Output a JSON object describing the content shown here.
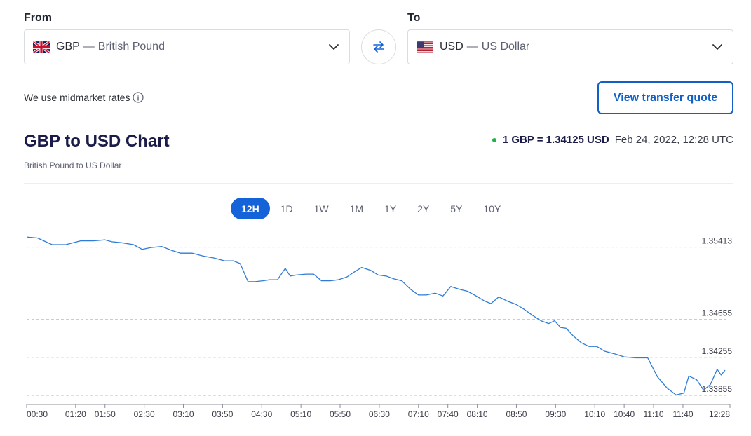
{
  "from": {
    "label": "From",
    "code": "GBP",
    "separator": "—",
    "name": "British Pound",
    "flag": "uk-flag-icon"
  },
  "to": {
    "label": "To",
    "code": "USD",
    "separator": "—",
    "name": "US Dollar",
    "flag": "us-flag-icon"
  },
  "rates_note": "We use midmarket rates",
  "quote_button": "View transfer quote",
  "chart_header": {
    "title": "GBP to USD Chart",
    "subtitle": "British Pound to US Dollar",
    "rate": "1 GBP = 1.34125 USD",
    "timestamp": "Feb 24, 2022, 12:28 UTC"
  },
  "periods": [
    "12H",
    "1D",
    "1W",
    "1M",
    "1Y",
    "2Y",
    "5Y",
    "10Y"
  ],
  "active_period": "12H",
  "colors": {
    "accent": "#1463d8",
    "line": "#2f7bd6",
    "live_dot": "#22b24c",
    "title": "#1b1c4a"
  },
  "chart_data": {
    "type": "line",
    "y_ticks": [
      1.35413,
      1.34655,
      1.34255,
      1.33855
    ],
    "y_tick_labels": [
      "1.35413",
      "1.34655",
      "1.34255",
      "1.33855"
    ],
    "ylim": [
      1.3376,
      1.3558
    ],
    "x_tick_labels": [
      "00:30",
      "01:20",
      "01:50",
      "02:30",
      "03:10",
      "03:50",
      "04:30",
      "05:10",
      "05:50",
      "06:30",
      "07:10",
      "07:40",
      "08:10",
      "08:50",
      "09:30",
      "10:10",
      "10:40",
      "11:10",
      "11:40",
      "12:28"
    ],
    "x_tick_minutes": [
      30,
      80,
      110,
      150,
      190,
      230,
      270,
      310,
      350,
      390,
      430,
      460,
      490,
      530,
      570,
      610,
      640,
      670,
      700,
      748
    ],
    "grid": "dashed horizontal at y ticks",
    "series": [
      {
        "points": [
          [
            30,
            1.3552
          ],
          [
            41,
            1.3551
          ],
          [
            56,
            1.3544
          ],
          [
            70,
            1.3544
          ],
          [
            85,
            1.3548
          ],
          [
            98,
            1.3548
          ],
          [
            110,
            1.3549
          ],
          [
            117,
            1.3547
          ],
          [
            127,
            1.3546
          ],
          [
            139,
            1.3544
          ],
          [
            148,
            1.3539
          ],
          [
            157,
            1.3541
          ],
          [
            168,
            1.3542
          ],
          [
            178,
            1.3538
          ],
          [
            187,
            1.3535
          ],
          [
            199,
            1.3535
          ],
          [
            210,
            1.3532
          ],
          [
            221,
            1.353
          ],
          [
            232,
            1.3527
          ],
          [
            241,
            1.3527
          ],
          [
            248,
            1.3524
          ],
          [
            256,
            1.3505
          ],
          [
            263,
            1.3505
          ],
          [
            271,
            1.3506
          ],
          [
            278,
            1.3507
          ],
          [
            286,
            1.3507
          ],
          [
            294,
            1.3519
          ],
          [
            299,
            1.3511
          ],
          [
            305,
            1.3512
          ],
          [
            315,
            1.3513
          ],
          [
            323,
            1.3513
          ],
          [
            331,
            1.3506
          ],
          [
            340,
            1.3506
          ],
          [
            348,
            1.3507
          ],
          [
            357,
            1.351
          ],
          [
            364,
            1.3515
          ],
          [
            372,
            1.352
          ],
          [
            381,
            1.3517
          ],
          [
            389,
            1.3512
          ],
          [
            397,
            1.3511
          ],
          [
            405,
            1.3508
          ],
          [
            413,
            1.3506
          ],
          [
            422,
            1.3497
          ],
          [
            430,
            1.3491
          ],
          [
            438,
            1.3491
          ],
          [
            447,
            1.3493
          ],
          [
            455,
            1.349
          ],
          [
            463,
            1.35
          ],
          [
            472,
            1.3497
          ],
          [
            480,
            1.3495
          ],
          [
            489,
            1.349
          ],
          [
            497,
            1.3485
          ],
          [
            504,
            1.3482
          ],
          [
            512,
            1.3489
          ],
          [
            520,
            1.3485
          ],
          [
            530,
            1.3481
          ],
          [
            538,
            1.3476
          ],
          [
            546,
            1.347
          ],
          [
            555,
            1.3464
          ],
          [
            563,
            1.3461
          ],
          [
            569,
            1.3464
          ],
          [
            575,
            1.3457
          ],
          [
            581,
            1.3456
          ],
          [
            588,
            1.3448
          ],
          [
            596,
            1.3441
          ],
          [
            604,
            1.3437
          ],
          [
            612,
            1.3437
          ],
          [
            620,
            1.3432
          ],
          [
            631,
            1.3429
          ],
          [
            640,
            1.3426
          ],
          [
            652,
            1.3425
          ],
          [
            664,
            1.3425
          ],
          [
            674,
            1.3405
          ],
          [
            684,
            1.3393
          ],
          [
            693,
            1.3386
          ],
          [
            701,
            1.3388
          ],
          [
            706,
            1.3406
          ],
          [
            714,
            1.3402
          ],
          [
            721,
            1.3391
          ],
          [
            728,
            1.3397
          ],
          [
            735,
            1.3413
          ],
          [
            739,
            1.3407
          ],
          [
            743,
            1.3412
          ]
        ]
      }
    ]
  }
}
